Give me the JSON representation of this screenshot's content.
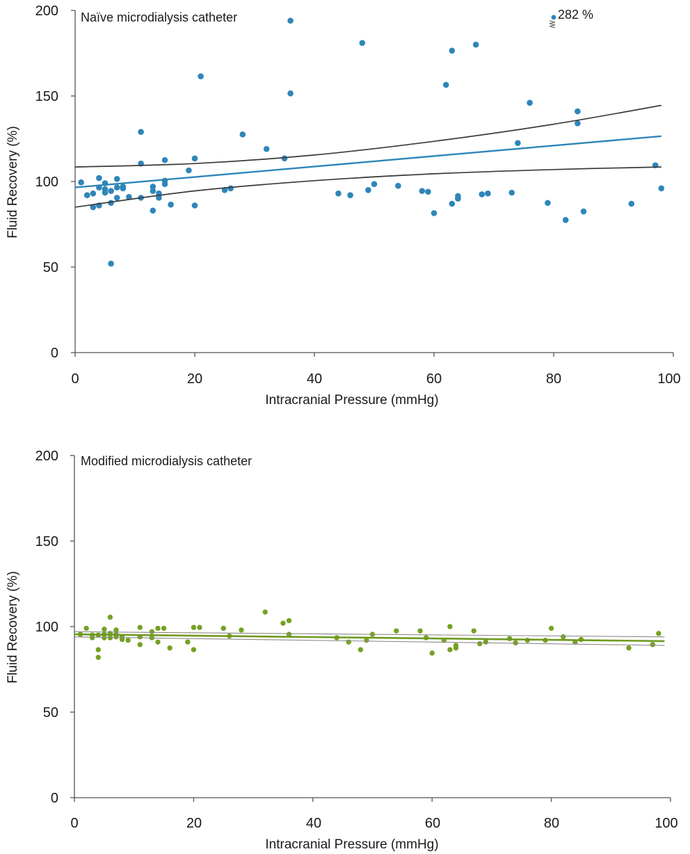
{
  "colors": {
    "naive_points": "#2e86b8",
    "naive_fit": "#2e86b8",
    "naive_ci": "#3a3a3a",
    "modified_points": "#76a124",
    "modified_fit": "#6f9a20",
    "modified_ci": "#8a8a8a",
    "axis": "#555555",
    "break_mark": "#777777"
  },
  "chart_data": [
    {
      "type": "scatter",
      "title": "Naïve microdialysis catheter",
      "xlabel": "Intracranial Pressure (mmHg)",
      "ylabel": "Fluid Recovery (%)",
      "xlim": [
        0,
        100
      ],
      "ylim": [
        0,
        200
      ],
      "xticks": [
        "0",
        "20",
        "40",
        "60",
        "80",
        "100"
      ],
      "yticks": [
        "0",
        "50",
        "100",
        "150",
        "200"
      ],
      "outlier": {
        "x": 80,
        "y": 196,
        "label": "282 %"
      },
      "points": [
        [
          1,
          99.5
        ],
        [
          2,
          92
        ],
        [
          3,
          85
        ],
        [
          3,
          93
        ],
        [
          4,
          102
        ],
        [
          4,
          96.5
        ],
        [
          4,
          86
        ],
        [
          5,
          99
        ],
        [
          5,
          93.5
        ],
        [
          5,
          95.5
        ],
        [
          6,
          94.5
        ],
        [
          6,
          87.5
        ],
        [
          6,
          52
        ],
        [
          7,
          101.5
        ],
        [
          7,
          96.5
        ],
        [
          7,
          90.5
        ],
        [
          8,
          96
        ],
        [
          8,
          97
        ],
        [
          9,
          91
        ],
        [
          11,
          129
        ],
        [
          11,
          110.5
        ],
        [
          11,
          90.5
        ],
        [
          13,
          97
        ],
        [
          13,
          94.5
        ],
        [
          13,
          83
        ],
        [
          14,
          93
        ],
        [
          14,
          90.5
        ],
        [
          15,
          112.5
        ],
        [
          15,
          100.5
        ],
        [
          15,
          98.5
        ],
        [
          16,
          86.5
        ],
        [
          19,
          106.5
        ],
        [
          20,
          113.5
        ],
        [
          20,
          86
        ],
        [
          21,
          161.5
        ],
        [
          25,
          95
        ],
        [
          26,
          96
        ],
        [
          28,
          127.5
        ],
        [
          32,
          119
        ],
        [
          35,
          113.5
        ],
        [
          36,
          194
        ],
        [
          36,
          151.5
        ],
        [
          44,
          93
        ],
        [
          46,
          92
        ],
        [
          48,
          181
        ],
        [
          49,
          95
        ],
        [
          50,
          98.5
        ],
        [
          54,
          97.5
        ],
        [
          58,
          94.5
        ],
        [
          59,
          94
        ],
        [
          60,
          81.5
        ],
        [
          62,
          156.5
        ],
        [
          63,
          176.5
        ],
        [
          63,
          87
        ],
        [
          64,
          90
        ],
        [
          64,
          91.5
        ],
        [
          67,
          180
        ],
        [
          68,
          92.5
        ],
        [
          69,
          93
        ],
        [
          73,
          93.5
        ],
        [
          74,
          122.5
        ],
        [
          76,
          146
        ],
        [
          79,
          87.5
        ],
        [
          82,
          77.5
        ],
        [
          84,
          141
        ],
        [
          84,
          134
        ],
        [
          85,
          82.5
        ],
        [
          93,
          87
        ],
        [
          97,
          109.5
        ],
        [
          98,
          96
        ]
      ],
      "fit": {
        "x": [
          0,
          98
        ],
        "y": [
          96.5,
          126.5
        ]
      },
      "ci_upper": {
        "x": [
          0,
          20,
          40,
          60,
          80,
          98
        ],
        "y": [
          108.5,
          110.5,
          115.5,
          123.5,
          133.5,
          144.5
        ]
      },
      "ci_lower": {
        "x": [
          0,
          20,
          40,
          60,
          80,
          98
        ],
        "y": [
          85,
          94.5,
          100.5,
          104.5,
          107,
          108.5
        ]
      }
    },
    {
      "type": "scatter",
      "title": "Modified microdialysis catheter",
      "xlabel": "Intracranial Pressure (mmHg)",
      "ylabel": "Fluid Recovery (%)",
      "xlim": [
        0,
        100
      ],
      "ylim": [
        0,
        200
      ],
      "xticks": [
        "0",
        "20",
        "40",
        "60",
        "80",
        "100"
      ],
      "yticks": [
        "0",
        "50",
        "100",
        "150",
        "200"
      ],
      "points": [
        [
          1,
          95.5
        ],
        [
          2,
          99
        ],
        [
          3,
          95
        ],
        [
          3,
          93.5
        ],
        [
          4,
          95
        ],
        [
          4,
          86.5
        ],
        [
          4,
          82
        ],
        [
          5,
          98.5
        ],
        [
          5,
          95.5
        ],
        [
          5,
          93.5
        ],
        [
          6,
          105.5
        ],
        [
          6,
          96
        ],
        [
          6,
          93.5
        ],
        [
          7,
          98
        ],
        [
          7,
          95.5
        ],
        [
          7,
          94
        ],
        [
          8,
          94
        ],
        [
          8,
          92.5
        ],
        [
          9,
          92
        ],
        [
          11,
          99.5
        ],
        [
          11,
          94
        ],
        [
          11,
          89.5
        ],
        [
          13,
          97
        ],
        [
          13,
          93.5
        ],
        [
          14,
          99
        ],
        [
          14,
          91
        ],
        [
          15,
          99
        ],
        [
          16,
          87.5
        ],
        [
          19,
          91
        ],
        [
          20,
          99.5
        ],
        [
          20,
          86.5
        ],
        [
          21,
          99.5
        ],
        [
          25,
          99
        ],
        [
          26,
          94.5
        ],
        [
          28,
          98
        ],
        [
          32,
          108.5
        ],
        [
          35,
          102
        ],
        [
          36,
          103.5
        ],
        [
          36,
          95.5
        ],
        [
          44,
          93.5
        ],
        [
          46,
          91
        ],
        [
          48,
          86.5
        ],
        [
          49,
          92
        ],
        [
          50,
          95.5
        ],
        [
          54,
          97.5
        ],
        [
          58,
          97.5
        ],
        [
          59,
          93.5
        ],
        [
          60,
          84.5
        ],
        [
          62,
          92
        ],
        [
          63,
          100
        ],
        [
          63,
          86.5
        ],
        [
          64,
          89
        ],
        [
          64,
          87.5
        ],
        [
          67,
          97.5
        ],
        [
          68,
          90
        ],
        [
          69,
          91
        ],
        [
          73,
          93
        ],
        [
          74,
          90.5
        ],
        [
          76,
          92
        ],
        [
          79,
          92
        ],
        [
          80,
          99
        ],
        [
          82,
          94
        ],
        [
          84,
          91
        ],
        [
          85,
          92.5
        ],
        [
          93,
          87.5
        ],
        [
          97,
          89.5
        ],
        [
          98,
          96
        ]
      ],
      "fit": {
        "x": [
          0,
          99
        ],
        "y": [
          95.5,
          91.5
        ]
      },
      "ci_upper": {
        "x": [
          0,
          99
        ],
        "y": [
          97,
          94
        ]
      },
      "ci_lower": {
        "x": [
          0,
          99
        ],
        "y": [
          94,
          89
        ]
      }
    }
  ]
}
